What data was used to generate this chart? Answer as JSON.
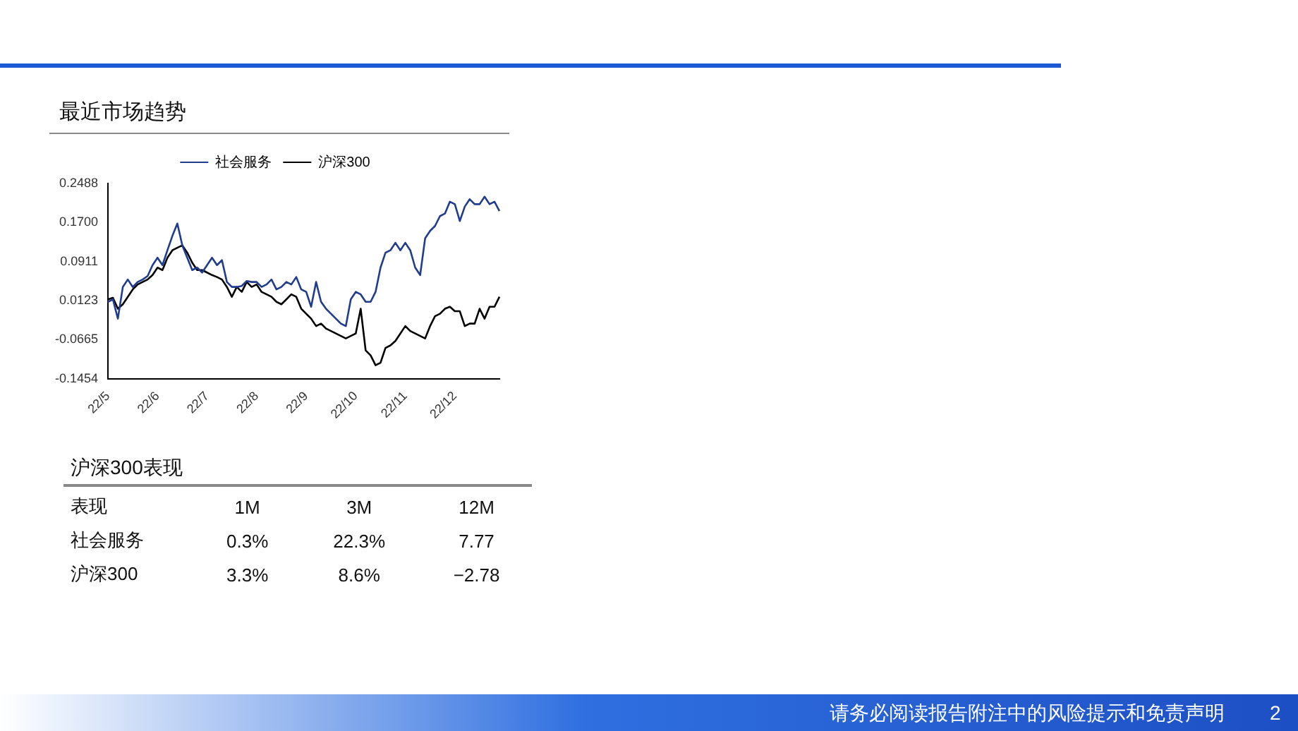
{
  "chart_data": [
    {
      "type": "line",
      "title": "最近市场趋势",
      "categories": [
        "22/5",
        null,
        null,
        null,
        null,
        null,
        null,
        null,
        null,
        null,
        "22/6",
        null,
        null,
        null,
        null,
        null,
        null,
        null,
        null,
        null,
        "22/7",
        null,
        null,
        null,
        null,
        null,
        null,
        null,
        null,
        null,
        "22/8",
        null,
        null,
        null,
        null,
        null,
        null,
        null,
        null,
        null,
        "22/9",
        null,
        null,
        null,
        null,
        null,
        null,
        null,
        null,
        null,
        "22/10",
        null,
        null,
        null,
        null,
        null,
        null,
        null,
        null,
        null,
        "22/11",
        null,
        null,
        null,
        null,
        null,
        null,
        null,
        null,
        null,
        "22/12",
        null,
        null,
        null,
        null,
        null,
        null,
        null,
        null,
        null
      ],
      "series": [
        {
          "name": "社会服务",
          "color": "#1f3c8f",
          "values": [
            0.01,
            0.015,
            -0.024,
            0.04,
            0.055,
            0.04,
            0.05,
            0.055,
            0.062,
            0.084,
            0.099,
            0.084,
            0.114,
            0.143,
            0.168,
            0.124,
            0.099,
            0.074,
            0.079,
            0.069,
            0.084,
            0.099,
            0.084,
            0.094,
            0.05,
            0.04,
            0.04,
            0.042,
            0.052,
            0.05,
            0.05,
            0.04,
            0.045,
            0.055,
            0.035,
            0.04,
            0.05,
            0.045,
            0.06,
            0.035,
            0.03,
            0.0,
            0.05,
            0.01,
            -0.004,
            -0.014,
            -0.024,
            -0.034,
            -0.039,
            0.015,
            0.03,
            0.025,
            0.01,
            0.01,
            0.03,
            0.079,
            0.109,
            0.114,
            0.129,
            0.114,
            0.129,
            0.114,
            0.079,
            0.064,
            0.138,
            0.153,
            0.163,
            0.183,
            0.188,
            0.212,
            0.207,
            0.173,
            0.202,
            0.217,
            0.207,
            0.207,
            0.222,
            0.207,
            0.212,
            0.193
          ]
        },
        {
          "name": "沪深300",
          "color": "#000000",
          "values": [
            0.015,
            0.018,
            -0.004,
            0.005,
            0.02,
            0.035,
            0.045,
            0.05,
            0.055,
            0.064,
            0.079,
            0.074,
            0.099,
            0.114,
            0.119,
            0.124,
            0.109,
            0.089,
            0.074,
            0.074,
            0.069,
            0.064,
            0.06,
            0.055,
            0.04,
            0.02,
            0.04,
            0.03,
            0.05,
            0.04,
            0.045,
            0.03,
            0.025,
            0.02,
            0.01,
            0.005,
            0.015,
            0.025,
            0.02,
            -0.004,
            -0.014,
            -0.024,
            -0.039,
            -0.034,
            -0.044,
            -0.049,
            -0.054,
            -0.059,
            -0.064,
            -0.059,
            -0.054,
            -0.004,
            -0.088,
            -0.098,
            -0.118,
            -0.113,
            -0.083,
            -0.078,
            -0.069,
            -0.054,
            -0.039,
            -0.049,
            -0.054,
            -0.059,
            -0.064,
            -0.039,
            -0.019,
            -0.014,
            -0.004,
            0.0,
            -0.009,
            -0.009,
            -0.039,
            -0.034,
            -0.034,
            -0.004,
            -0.024,
            0.0,
            0.0,
            0.02
          ]
        }
      ],
      "ylim": [
        -0.1454,
        0.2488
      ],
      "yticks": [
        -0.1454,
        -0.0665,
        0.0123,
        0.0911,
        {
          "value": 0.17,
          "label": "0.1700"
        },
        0.2488
      ],
      "grid": false,
      "legend": "top",
      "marker": "none",
      "line_style": "solid",
      "annotations": [
        "请务必阅读报告附注中的风险提示和免责声明",
        "2"
      ]
    },
    {
      "type": "other",
      "title": "沪深300表现",
      "ylabel": "表现",
      "categories": [
        "1M",
        "3M",
        "12M"
      ],
      "y_categories": [
        "社会服务",
        "沪深300"
      ],
      "cell_labels": [
        [
          "0.3%",
          "22.3%",
          "7.77"
        ],
        [
          "3.3%",
          "8.6%",
          "−2.78"
        ]
      ]
    }
  ]
}
